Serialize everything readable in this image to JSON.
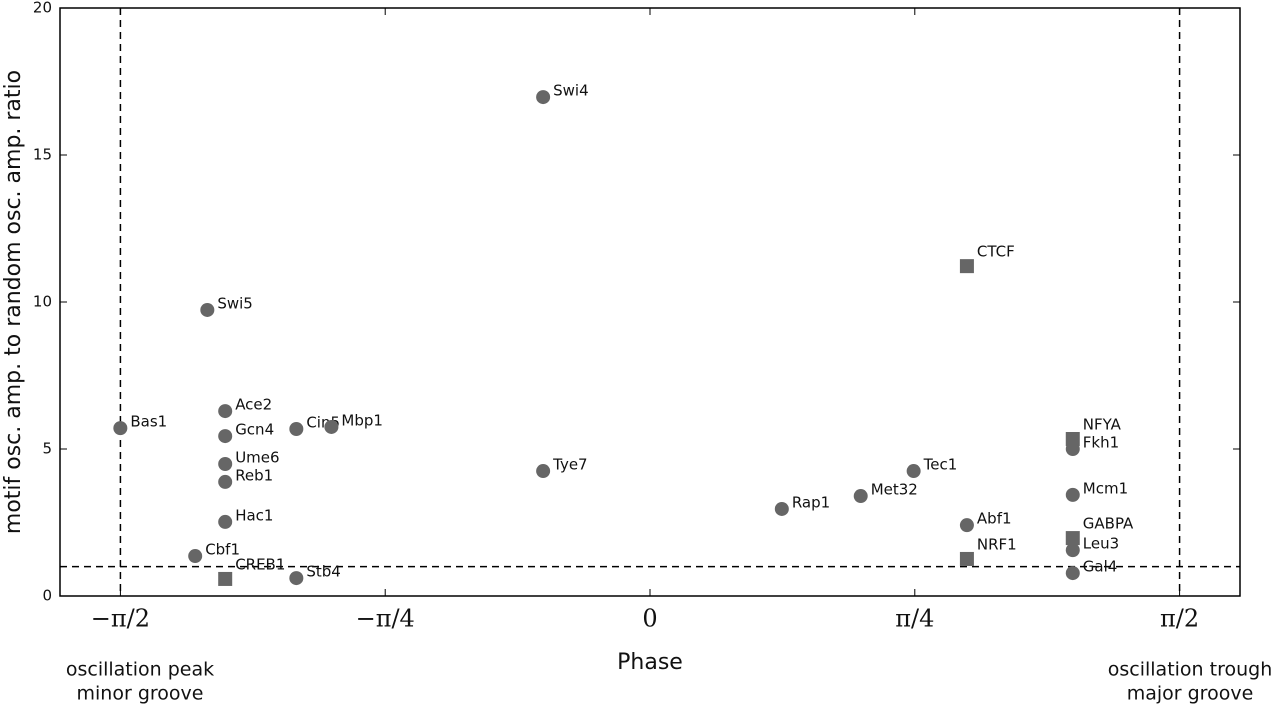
{
  "chart_data": {
    "type": "scatter",
    "xlabel": "Phase",
    "ylabel": "motif osc. amp. to random osc. amp. ratio",
    "xlim": [
      -1.75,
      1.75
    ],
    "ylim": [
      0,
      20
    ],
    "xticks": [
      {
        "value": -1.5708,
        "label": "−π/2"
      },
      {
        "value": -0.7854,
        "label": "−π/4"
      },
      0,
      {
        "value": 0.7854,
        "label": "π/4"
      },
      {
        "value": 1.5708,
        "label": "π/2"
      }
    ],
    "yticks": [
      0,
      5,
      10,
      15,
      20
    ],
    "vlines": [
      -1.5708,
      1.5708
    ],
    "hlines": [
      1
    ],
    "series": [
      {
        "marker": "circle",
        "color": "#666666",
        "labels": [
          "Bas1",
          "Swi5",
          "Ace2",
          "Gcn4",
          "Ume6",
          "Reb1",
          "Hac1",
          "Cbf1",
          "Stb4",
          "Cin5",
          "Mbp1",
          "Swi4",
          "Tye7",
          "Rap1",
          "Met32",
          "Tec1",
          "Abf1",
          "Fkh1",
          "Mcm1",
          "Leu3",
          "Gal4"
        ],
        "x": [
          -1.571,
          -1.313,
          -1.26,
          -1.26,
          -1.26,
          -1.26,
          -1.26,
          -1.349,
          -1.049,
          -1.049,
          -0.945,
          -0.317,
          -0.317,
          0.391,
          0.625,
          0.782,
          0.94,
          1.254,
          1.254,
          1.254,
          1.254
        ],
        "values": [
          5.71,
          9.73,
          6.29,
          5.44,
          4.49,
          3.88,
          2.52,
          1.36,
          0.61,
          5.68,
          5.75,
          16.97,
          4.25,
          2.96,
          3.4,
          4.25,
          2.41,
          5.0,
          3.44,
          1.56,
          0.78
        ]
      },
      {
        "marker": "square",
        "color": "#666666",
        "labels": [
          "CTCF",
          "NRF1",
          "NFYA",
          "GABPA",
          "CREB1"
        ],
        "x": [
          0.94,
          0.94,
          1.254,
          1.254,
          -1.26
        ],
        "values": [
          11.22,
          1.26,
          5.34,
          1.97,
          0.58
        ]
      }
    ],
    "annotations": [
      [
        "oscillation peak",
        "minor groove"
      ],
      [
        "oscillation trough",
        "major groove"
      ]
    ]
  }
}
